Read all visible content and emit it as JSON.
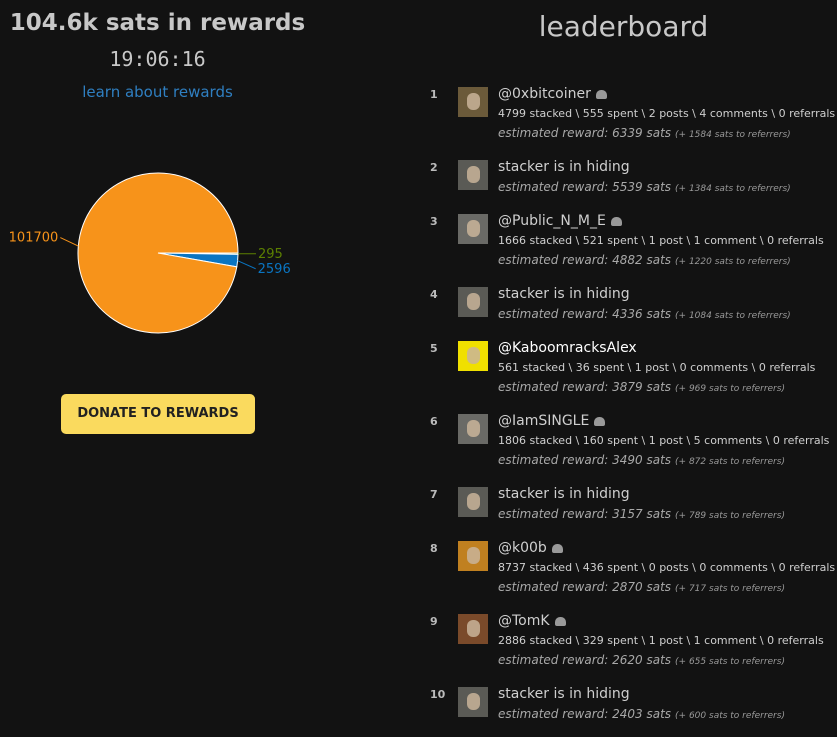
{
  "header": {
    "title": "104.6k sats in rewards",
    "timer": "19:06:16",
    "link": "learn about rewards"
  },
  "chart_data": {
    "type": "pie",
    "values": [
      295,
      2596,
      101700
    ],
    "colors": [
      "#5c8001",
      "#0a75c2",
      "#f7931a"
    ]
  },
  "button": "DONATE TO REWARDS",
  "leaderboard": {
    "title": "leaderboard",
    "entries": [
      {
        "rank": 1,
        "name": "@0xbitcoiner",
        "badge": true,
        "stats": "4799 stacked \\ 555 spent \\ 2 posts \\ 4 comments \\ 0 referrals",
        "reward": "estimated reward: 6339 sats",
        "referrers": "(+ 1584 sats to referrers)"
      },
      {
        "rank": 2,
        "name": "stacker is in hiding",
        "reward": "estimated reward: 5539 sats",
        "referrers": "(+ 1384 sats to referrers)"
      },
      {
        "rank": 3,
        "name": "@Public_N_M_E",
        "badge": true,
        "stats": "1666 stacked \\ 521 spent \\ 1 post \\ 1 comment \\ 0 referrals",
        "reward": "estimated reward: 4882 sats",
        "referrers": "(+ 1220 sats to referrers)"
      },
      {
        "rank": 4,
        "name": "stacker is in hiding",
        "reward": "estimated reward: 4336 sats",
        "referrers": "(+ 1084 sats to referrers)"
      },
      {
        "rank": 5,
        "name": "@KaboomracksAlex",
        "badge": false,
        "stats": "561 stacked \\ 36 spent \\ 1 post \\ 0 comments \\ 0 referrals",
        "reward": "estimated reward: 3879 sats",
        "referrers": "(+ 969 sats to referrers)"
      },
      {
        "rank": 6,
        "name": "@IamSINGLE",
        "badge": true,
        "stats": "1806 stacked \\ 160 spent \\ 1 post \\ 5 comments \\ 0 referrals",
        "reward": "estimated reward: 3490 sats",
        "referrers": "(+ 872 sats to referrers)"
      },
      {
        "rank": 7,
        "name": "stacker is in hiding",
        "reward": "estimated reward: 3157 sats",
        "referrers": "(+ 789 sats to referrers)"
      },
      {
        "rank": 8,
        "name": "@k00b",
        "badge": true,
        "stats": "8737 stacked \\ 436 spent \\ 0 posts \\ 0 comments \\ 0 referrals",
        "reward": "estimated reward: 2870 sats",
        "referrers": "(+ 717 sats to referrers)"
      },
      {
        "rank": 9,
        "name": "@TomK",
        "badge": true,
        "stats": "2886 stacked \\ 329 spent \\ 1 post \\ 1 comment \\ 0 referrals",
        "reward": "estimated reward: 2620 sats",
        "referrers": "(+ 655 sats to referrers)"
      },
      {
        "rank": 10,
        "name": "stacker is in hiding",
        "reward": "estimated reward: 2403 sats",
        "referrers": "(+ 600 sats to referrers)"
      }
    ]
  }
}
